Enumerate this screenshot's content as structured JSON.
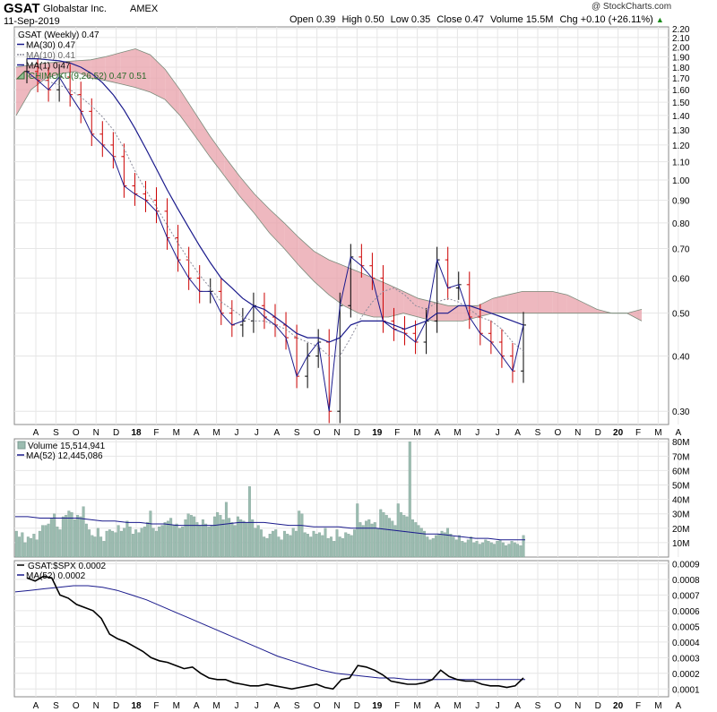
{
  "header": {
    "symbol": "GSAT",
    "name": "Globalstar Inc.",
    "exchange": "AMEX",
    "date": "11-Sep-2019",
    "copyright": "@ StockCharts.com",
    "stats": {
      "open_label": "Open",
      "open": "0.39",
      "high_label": "High",
      "high": "0.50",
      "low_label": "Low",
      "low": "0.35",
      "close_label": "Close",
      "close": "0.47",
      "volume_label": "Volume",
      "volume": "15.5M",
      "chg_label": "Chg",
      "chg": "+0.10 (+26.11%)"
    }
  },
  "colors": {
    "up": "#000000",
    "down": "#cc0000",
    "ma_blue": "#1a1a8c",
    "ma10_gray": "#8a8a9a",
    "cloud_green": "#8fbf8f",
    "cloud_red": "#e8a0aa",
    "volume_bar": "#9bbcb0",
    "grid": "#e6e6e6"
  },
  "chart_data": [
    {
      "type": "line",
      "panel": "price",
      "legend": [
        "GSAT (Weekly) 0.47",
        "MA(30) 0.47",
        "MA(10) 0.41",
        "MA(1) 0.47",
        "ICHIMOKU(9,26,52) 0.47 0.51"
      ],
      "y_scale": "log",
      "ylim": [
        0.28,
        2.22
      ],
      "y_ticks": [
        "2.20",
        "2.10",
        "2.00",
        "1.90",
        "1.80",
        "1.70",
        "1.60",
        "1.50",
        "1.40",
        "1.30",
        "1.20",
        "1.10",
        "1.00",
        "0.90",
        "0.80",
        "0.70",
        "0.60",
        "0.50",
        "0.40",
        "0.30"
      ],
      "x_labels": [
        "A",
        "S",
        "O",
        "N",
        "D",
        "18",
        "F",
        "M",
        "A",
        "M",
        "J",
        "J",
        "A",
        "S",
        "O",
        "N",
        "D",
        "19",
        "F",
        "M",
        "A",
        "M",
        "J",
        "J",
        "A",
        "S",
        "O",
        "N",
        "D",
        "20",
        "F",
        "M",
        "A"
      ],
      "close": [
        1.76,
        1.68,
        1.6,
        1.71,
        1.56,
        1.43,
        1.27,
        1.2,
        1.13,
        0.97,
        0.93,
        0.9,
        0.85,
        0.74,
        0.66,
        0.6,
        0.56,
        0.56,
        0.5,
        0.47,
        0.48,
        0.52,
        0.49,
        0.47,
        0.44,
        0.36,
        0.4,
        0.43,
        0.3,
        0.52,
        0.67,
        0.64,
        0.6,
        0.48,
        0.46,
        0.45,
        0.43,
        0.48,
        0.66,
        0.57,
        0.58,
        0.49,
        0.45,
        0.43,
        0.4,
        0.37,
        0.47
      ],
      "ma30": [
        1.88,
        1.88,
        1.87,
        1.86,
        1.84,
        1.8,
        1.74,
        1.66,
        1.56,
        1.44,
        1.31,
        1.18,
        1.06,
        0.95,
        0.86,
        0.78,
        0.71,
        0.65,
        0.6,
        0.57,
        0.54,
        0.52,
        0.51,
        0.49,
        0.47,
        0.45,
        0.44,
        0.44,
        0.43,
        0.44,
        0.47,
        0.48,
        0.48,
        0.48,
        0.47,
        0.46,
        0.47,
        0.48,
        0.5,
        0.5,
        0.52,
        0.52,
        0.51,
        0.5,
        0.49,
        0.48,
        0.47
      ],
      "ma10": [
        1.72,
        1.7,
        1.67,
        1.64,
        1.6,
        1.54,
        1.47,
        1.39,
        1.3,
        1.18,
        1.05,
        0.95,
        0.87,
        0.79,
        0.72,
        0.66,
        0.61,
        0.57,
        0.53,
        0.51,
        0.49,
        0.48,
        0.48,
        0.47,
        0.46,
        0.44,
        0.43,
        0.42,
        0.4,
        0.4,
        0.44,
        0.49,
        0.53,
        0.56,
        0.57,
        0.55,
        0.52,
        0.51,
        0.53,
        0.54,
        0.53,
        0.51,
        0.49,
        0.48,
        0.46,
        0.43,
        0.41
      ],
      "cloud_top": [
        1.8,
        1.82,
        1.84,
        1.85,
        1.86,
        1.87,
        1.9,
        1.94,
        1.98,
        1.92,
        1.78,
        1.6,
        1.42,
        1.26,
        1.13,
        1.02,
        0.93,
        0.86,
        0.8,
        0.74,
        0.69,
        0.66,
        0.64,
        0.62,
        0.6,
        0.58,
        0.56,
        0.54,
        0.53,
        0.52,
        0.52,
        0.52,
        0.54,
        0.55,
        0.56,
        0.56,
        0.56,
        0.55,
        0.53,
        0.51,
        0.5,
        0.5,
        0.51
      ],
      "cloud_bottom": [
        1.4,
        1.6,
        1.7,
        1.74,
        1.76,
        1.7,
        1.68,
        1.65,
        1.62,
        1.58,
        1.52,
        1.4,
        1.26,
        1.13,
        1.02,
        0.92,
        0.84,
        0.76,
        0.7,
        0.64,
        0.59,
        0.55,
        0.52,
        0.5,
        0.49,
        0.49,
        0.5,
        0.49,
        0.48,
        0.48,
        0.48,
        0.49,
        0.5,
        0.5,
        0.5,
        0.5,
        0.5,
        0.5,
        0.5,
        0.5,
        0.5,
        0.5,
        0.48
      ]
    },
    {
      "type": "bar",
      "panel": "volume",
      "legend": [
        "Volume 15,514,941",
        "MA(52) 12,445,086"
      ],
      "ylim": [
        0,
        82
      ],
      "y_ticks": [
        "80M",
        "70M",
        "60M",
        "50M",
        "40M",
        "30M",
        "20M",
        "10M"
      ],
      "values": [
        18,
        14,
        17,
        10,
        14,
        13,
        16,
        12,
        18,
        22,
        22,
        23,
        27,
        30,
        21,
        19,
        28,
        29,
        32,
        31,
        26,
        29,
        28,
        35,
        23,
        19,
        15,
        14,
        20,
        14,
        11,
        18,
        19,
        18,
        17,
        22,
        18,
        20,
        25,
        21,
        16,
        19,
        17,
        20,
        21,
        24,
        32,
        20,
        18,
        21,
        22,
        24,
        25,
        27,
        22,
        23,
        20,
        21,
        26,
        30,
        29,
        28,
        24,
        22,
        26,
        23,
        21,
        22,
        28,
        31,
        29,
        26,
        38,
        27,
        24,
        22,
        28,
        26,
        25,
        24,
        49,
        26,
        20,
        22,
        19,
        14,
        13,
        16,
        18,
        19,
        14,
        12,
        18,
        16,
        15,
        20,
        18,
        32,
        30,
        17,
        16,
        14,
        18,
        16,
        17,
        15,
        20,
        13,
        14,
        11,
        19,
        14,
        13,
        17,
        16,
        15,
        19,
        37,
        24,
        22,
        25,
        26,
        23,
        24,
        20,
        33,
        31,
        29,
        27,
        25,
        22,
        37,
        31,
        29,
        28,
        80,
        26,
        24,
        22,
        20,
        18,
        14,
        12,
        13,
        15,
        16,
        18,
        17,
        20,
        16,
        14,
        12,
        15,
        11,
        10,
        12,
        14,
        10,
        11,
        9,
        10,
        12,
        11,
        10,
        9,
        11,
        12,
        10,
        8,
        9,
        11,
        10,
        9,
        8,
        15
      ],
      "ma52": [
        28,
        28,
        27,
        27,
        27,
        27,
        26,
        25,
        25,
        24,
        24,
        23,
        23,
        22,
        22,
        22,
        22,
        23,
        24,
        24,
        24,
        23,
        22,
        22,
        21,
        21,
        21,
        20,
        20,
        20,
        19,
        18,
        17,
        16,
        16,
        15,
        14,
        13,
        13,
        12,
        12,
        12
      ]
    },
    {
      "type": "line",
      "panel": "ratio",
      "legend": [
        "GSAT:$SPX 0.0002",
        "MA(52) 0.0002"
      ],
      "ylim": [
        5e-05,
        0.00092
      ],
      "y_ticks": [
        "0.0009",
        "0.0008",
        "0.0007",
        "0.0006",
        "0.0005",
        "0.0004",
        "0.0003",
        "0.0002",
        "0.0001"
      ],
      "ratio": [
        0.00081,
        0.00079,
        0.00082,
        0.00081,
        0.0007,
        0.00068,
        0.00064,
        0.00062,
        0.0006,
        0.00055,
        0.00045,
        0.00042,
        0.0004,
        0.00037,
        0.00034,
        0.0003,
        0.00028,
        0.00027,
        0.00025,
        0.00023,
        0.00024,
        0.0002,
        0.00017,
        0.00016,
        0.00016,
        0.00014,
        0.00013,
        0.00012,
        0.00012,
        0.00013,
        0.00012,
        0.00011,
        0.0001,
        0.00011,
        0.00012,
        0.00013,
        0.00011,
        0.0001,
        0.00016,
        0.00017,
        0.00025,
        0.00024,
        0.00022,
        0.00019,
        0.00015,
        0.00014,
        0.00013,
        0.00013,
        0.00014,
        0.00016,
        0.00022,
        0.00018,
        0.00016,
        0.00015,
        0.00015,
        0.00013,
        0.00012,
        0.00012,
        0.00011,
        0.00012,
        0.00017
      ],
      "ma52": [
        0.00072,
        0.00073,
        0.00074,
        0.00075,
        0.00076,
        0.00076,
        0.00075,
        0.00073,
        0.0007,
        0.00067,
        0.00063,
        0.00059,
        0.00055,
        0.00051,
        0.00047,
        0.00043,
        0.00039,
        0.00035,
        0.00031,
        0.00028,
        0.00025,
        0.00022,
        0.0002,
        0.00019,
        0.00018,
        0.00017,
        0.00017,
        0.00016,
        0.00016,
        0.00016,
        0.00016,
        0.00016,
        0.00016,
        0.00016,
        0.00016,
        0.00016
      ]
    }
  ]
}
